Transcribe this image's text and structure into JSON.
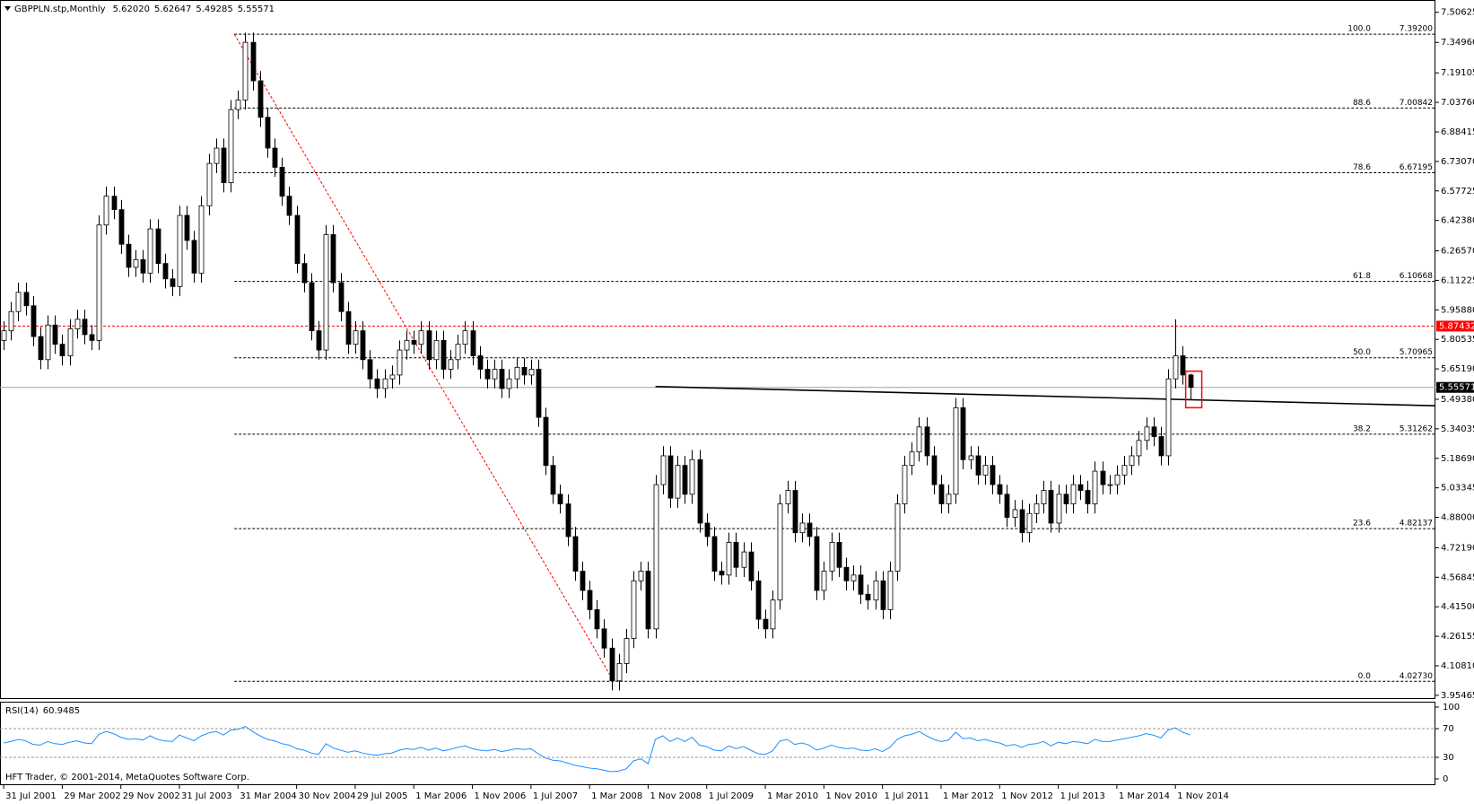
{
  "chart_data": {
    "type": "candlestick",
    "symbol": "GBPPLN.stp,Monthly",
    "ohlc_labels": [
      "5.62020",
      "5.62647",
      "5.49285",
      "5.55571"
    ],
    "up_color": "#ffffff",
    "down_color": "#000000",
    "xlim": [
      -0.5,
      195.5
    ],
    "xticks": [
      {
        "value": 0,
        "label": "31 Jul 2001"
      },
      {
        "value": 8,
        "label": "29 Mar 2002"
      },
      {
        "value": 16,
        "label": "29 Nov 2002"
      },
      {
        "value": 24,
        "label": "31 Jul 2003"
      },
      {
        "value": 32,
        "label": "31 Mar 2004"
      },
      {
        "value": 40,
        "label": "30 Nov 2004"
      },
      {
        "value": 48,
        "label": "29 Jul 2005"
      },
      {
        "value": 56,
        "label": "1 Mar 2006"
      },
      {
        "value": 64,
        "label": "1 Nov 2006"
      },
      {
        "value": 72,
        "label": "1 Jul 2007"
      },
      {
        "value": 80,
        "label": "1 Mar 2008"
      },
      {
        "value": 88,
        "label": "1 Nov 2008"
      },
      {
        "value": 96,
        "label": "1 Jul 2009"
      },
      {
        "value": 104,
        "label": "1 Mar 2010"
      },
      {
        "value": 112,
        "label": "1 Nov 2010"
      },
      {
        "value": 120,
        "label": "1 Jul 2011"
      },
      {
        "value": 128,
        "label": "1 Mar 2012"
      },
      {
        "value": 136,
        "label": "1 Nov 2012"
      },
      {
        "value": 144,
        "label": "1 Jul 2013"
      },
      {
        "value": 152,
        "label": "1 Mar 2014"
      },
      {
        "value": 160,
        "label": "1 Nov 2014"
      }
    ],
    "ylim": [
      3.94,
      7.57
    ],
    "yticks": [
      {
        "value": 7.50625,
        "label": "7.50625"
      },
      {
        "value": 7.3496,
        "label": "7.34960"
      },
      {
        "value": 7.19105,
        "label": "7.19105"
      },
      {
        "value": 7.0376,
        "label": "7.03760"
      },
      {
        "value": 6.88415,
        "label": "6.88415"
      },
      {
        "value": 6.7307,
        "label": "6.73070"
      },
      {
        "value": 6.57725,
        "label": "6.57725"
      },
      {
        "value": 6.4238,
        "label": "6.42380"
      },
      {
        "value": 6.2657,
        "label": "6.26570"
      },
      {
        "value": 6.11225,
        "label": "6.11225"
      },
      {
        "value": 5.9588,
        "label": "5.95880"
      },
      {
        "value": 5.80535,
        "label": "5.80535"
      },
      {
        "value": 5.6519,
        "label": "5.65190"
      },
      {
        "value": 5.4938,
        "label": "5.49380"
      },
      {
        "value": 5.34035,
        "label": "5.34035"
      },
      {
        "value": 5.1869,
        "label": "5.18690"
      },
      {
        "value": 5.03345,
        "label": "5.03345"
      },
      {
        "value": 4.88,
        "label": "4.88000"
      },
      {
        "value": 4.7219,
        "label": "4.72190"
      },
      {
        "value": 4.56845,
        "label": "4.56845"
      },
      {
        "value": 4.415,
        "label": "4.41500"
      },
      {
        "value": 4.26155,
        "label": "4.26155"
      },
      {
        "value": 4.1081,
        "label": "4.10810"
      },
      {
        "value": 3.95465,
        "label": "3.95465"
      }
    ],
    "candles": [
      [
        5.8,
        5.9,
        5.75,
        5.85
      ],
      [
        5.85,
        6.0,
        5.8,
        5.95
      ],
      [
        5.95,
        6.1,
        5.9,
        6.05
      ],
      [
        6.05,
        6.1,
        5.93,
        5.98
      ],
      [
        5.98,
        6.03,
        5.77,
        5.82
      ],
      [
        5.82,
        5.87,
        5.65,
        5.7
      ],
      [
        5.7,
        5.93,
        5.65,
        5.88
      ],
      [
        5.88,
        5.93,
        5.73,
        5.78
      ],
      [
        5.78,
        5.83,
        5.67,
        5.72
      ],
      [
        5.72,
        5.91,
        5.67,
        5.86
      ],
      [
        5.86,
        5.96,
        5.81,
        5.91
      ],
      [
        5.91,
        5.96,
        5.78,
        5.83
      ],
      [
        5.83,
        5.88,
        5.75,
        5.8
      ],
      [
        5.8,
        6.45,
        5.75,
        6.4
      ],
      [
        6.4,
        6.6,
        6.35,
        6.55
      ],
      [
        6.55,
        6.6,
        6.43,
        6.48
      ],
      [
        6.48,
        6.53,
        6.25,
        6.3
      ],
      [
        6.3,
        6.35,
        6.13,
        6.18
      ],
      [
        6.18,
        6.27,
        6.13,
        6.22
      ],
      [
        6.22,
        6.27,
        6.1,
        6.15
      ],
      [
        6.15,
        6.43,
        6.1,
        6.38
      ],
      [
        6.38,
        6.43,
        6.15,
        6.2
      ],
      [
        6.2,
        6.25,
        6.07,
        6.12
      ],
      [
        6.12,
        6.17,
        6.03,
        6.08
      ],
      [
        6.08,
        6.5,
        6.03,
        6.45
      ],
      [
        6.45,
        6.5,
        6.27,
        6.32
      ],
      [
        6.32,
        6.37,
        6.1,
        6.15
      ],
      [
        6.15,
        6.55,
        6.1,
        6.5
      ],
      [
        6.5,
        6.77,
        6.45,
        6.72
      ],
      [
        6.72,
        6.85,
        6.67,
        6.8
      ],
      [
        6.8,
        6.85,
        6.57,
        6.62
      ],
      [
        6.62,
        7.05,
        6.57,
        7.0
      ],
      [
        7.0,
        7.1,
        6.95,
        7.05
      ],
      [
        7.05,
        7.4,
        7.0,
        7.35
      ],
      [
        7.35,
        7.4,
        7.1,
        7.15
      ],
      [
        7.15,
        7.2,
        6.91,
        6.96
      ],
      [
        6.96,
        7.01,
        6.75,
        6.8
      ],
      [
        6.8,
        6.85,
        6.65,
        6.7
      ],
      [
        6.7,
        6.75,
        6.5,
        6.55
      ],
      [
        6.55,
        6.6,
        6.4,
        6.45
      ],
      [
        6.45,
        6.5,
        6.15,
        6.2
      ],
      [
        6.2,
        6.25,
        6.05,
        6.1
      ],
      [
        6.1,
        6.15,
        5.8,
        5.85
      ],
      [
        5.85,
        5.9,
        5.7,
        5.75
      ],
      [
        5.75,
        6.4,
        5.7,
        6.35
      ],
      [
        6.35,
        6.4,
        6.05,
        6.1
      ],
      [
        6.1,
        6.15,
        5.9,
        5.95
      ],
      [
        5.95,
        6.0,
        5.73,
        5.78
      ],
      [
        5.78,
        5.9,
        5.73,
        5.85
      ],
      [
        5.85,
        5.9,
        5.65,
        5.7
      ],
      [
        5.7,
        5.75,
        5.55,
        5.6
      ],
      [
        5.6,
        5.65,
        5.5,
        5.55
      ],
      [
        5.55,
        5.65,
        5.5,
        5.6
      ],
      [
        5.6,
        5.67,
        5.55,
        5.62
      ],
      [
        5.62,
        5.8,
        5.57,
        5.75
      ],
      [
        5.75,
        5.85,
        5.7,
        5.8
      ],
      [
        5.8,
        5.85,
        5.73,
        5.78
      ],
      [
        5.78,
        5.9,
        5.73,
        5.85
      ],
      [
        5.85,
        5.9,
        5.65,
        5.7
      ],
      [
        5.7,
        5.85,
        5.65,
        5.8
      ],
      [
        5.8,
        5.85,
        5.6,
        5.65
      ],
      [
        5.65,
        5.75,
        5.6,
        5.7
      ],
      [
        5.7,
        5.83,
        5.65,
        5.78
      ],
      [
        5.78,
        5.9,
        5.73,
        5.85
      ],
      [
        5.85,
        5.9,
        5.67,
        5.72
      ],
      [
        5.72,
        5.77,
        5.6,
        5.65
      ],
      [
        5.65,
        5.7,
        5.55,
        5.6
      ],
      [
        5.6,
        5.7,
        5.55,
        5.65
      ],
      [
        5.65,
        5.7,
        5.5,
        5.55
      ],
      [
        5.55,
        5.65,
        5.5,
        5.6
      ],
      [
        5.6,
        5.71,
        5.55,
        5.66
      ],
      [
        5.66,
        5.71,
        5.57,
        5.62
      ],
      [
        5.62,
        5.7,
        5.57,
        5.65
      ],
      [
        5.65,
        5.7,
        5.35,
        5.4
      ],
      [
        5.4,
        5.45,
        5.1,
        5.15
      ],
      [
        5.15,
        5.2,
        4.95,
        5.0
      ],
      [
        5.0,
        5.05,
        4.9,
        4.95
      ],
      [
        4.95,
        5.0,
        4.73,
        4.78
      ],
      [
        4.78,
        4.83,
        4.55,
        4.6
      ],
      [
        4.6,
        4.65,
        4.45,
        4.5
      ],
      [
        4.5,
        4.55,
        4.35,
        4.4
      ],
      [
        4.4,
        4.45,
        4.25,
        4.3
      ],
      [
        4.3,
        4.35,
        4.15,
        4.2
      ],
      [
        4.2,
        4.25,
        3.98,
        4.03
      ],
      [
        4.03,
        4.17,
        3.98,
        4.12
      ],
      [
        4.12,
        4.3,
        4.07,
        4.25
      ],
      [
        4.25,
        4.6,
        4.2,
        4.55
      ],
      [
        4.55,
        4.65,
        4.5,
        4.6
      ],
      [
        4.6,
        4.65,
        4.25,
        4.3
      ],
      [
        4.3,
        5.1,
        4.25,
        5.05
      ],
      [
        5.05,
        5.25,
        5.0,
        5.2
      ],
      [
        5.2,
        5.25,
        4.93,
        4.98
      ],
      [
        4.98,
        5.2,
        4.93,
        5.15
      ],
      [
        5.15,
        5.2,
        4.95,
        5.0
      ],
      [
        5.0,
        5.23,
        4.95,
        5.18
      ],
      [
        5.18,
        5.23,
        4.8,
        4.85
      ],
      [
        4.85,
        4.9,
        4.73,
        4.78
      ],
      [
        4.78,
        4.83,
        4.55,
        4.6
      ],
      [
        4.6,
        4.65,
        4.53,
        4.58
      ],
      [
        4.58,
        4.8,
        4.53,
        4.75
      ],
      [
        4.75,
        4.8,
        4.57,
        4.62
      ],
      [
        4.62,
        4.75,
        4.57,
        4.7
      ],
      [
        4.7,
        4.75,
        4.5,
        4.55
      ],
      [
        4.55,
        4.6,
        4.3,
        4.35
      ],
      [
        4.35,
        4.4,
        4.25,
        4.3
      ],
      [
        4.3,
        4.5,
        4.25,
        4.45
      ],
      [
        4.45,
        5.0,
        4.4,
        4.95
      ],
      [
        4.95,
        5.07,
        4.9,
        5.02
      ],
      [
        5.02,
        5.07,
        4.75,
        4.8
      ],
      [
        4.8,
        4.9,
        4.75,
        4.85
      ],
      [
        4.85,
        4.9,
        4.73,
        4.78
      ],
      [
        4.78,
        4.83,
        4.45,
        4.5
      ],
      [
        4.5,
        4.65,
        4.45,
        4.6
      ],
      [
        4.6,
        4.8,
        4.55,
        4.75
      ],
      [
        4.75,
        4.8,
        4.57,
        4.62
      ],
      [
        4.62,
        4.67,
        4.5,
        4.55
      ],
      [
        4.55,
        4.63,
        4.5,
        4.58
      ],
      [
        4.58,
        4.63,
        4.43,
        4.48
      ],
      [
        4.48,
        4.53,
        4.4,
        4.45
      ],
      [
        4.45,
        4.6,
        4.4,
        4.55
      ],
      [
        4.55,
        4.6,
        4.35,
        4.4
      ],
      [
        4.4,
        4.65,
        4.35,
        4.6
      ],
      [
        4.6,
        5.0,
        4.55,
        4.95
      ],
      [
        4.95,
        5.2,
        4.9,
        5.15
      ],
      [
        5.15,
        5.27,
        5.1,
        5.22
      ],
      [
        5.22,
        5.4,
        5.17,
        5.35
      ],
      [
        5.35,
        5.4,
        5.15,
        5.2
      ],
      [
        5.2,
        5.25,
        5.0,
        5.05
      ],
      [
        5.05,
        5.1,
        4.9,
        4.95
      ],
      [
        4.95,
        5.05,
        4.9,
        5.0
      ],
      [
        5.0,
        5.5,
        4.95,
        5.45
      ],
      [
        5.45,
        5.5,
        5.13,
        5.18
      ],
      [
        5.18,
        5.25,
        5.13,
        5.2
      ],
      [
        5.2,
        5.25,
        5.05,
        5.1
      ],
      [
        5.1,
        5.2,
        5.05,
        5.15
      ],
      [
        5.15,
        5.2,
        5.0,
        5.05
      ],
      [
        5.05,
        5.1,
        4.95,
        5.0
      ],
      [
        5.0,
        5.05,
        4.83,
        4.88
      ],
      [
        4.88,
        4.97,
        4.83,
        4.92
      ],
      [
        4.92,
        4.97,
        4.75,
        4.8
      ],
      [
        4.8,
        4.95,
        4.75,
        4.9
      ],
      [
        4.9,
        5.0,
        4.85,
        4.95
      ],
      [
        4.95,
        5.07,
        4.9,
        5.02
      ],
      [
        5.02,
        5.07,
        4.8,
        4.85
      ],
      [
        4.85,
        5.05,
        4.8,
        5.0
      ],
      [
        5.0,
        5.05,
        4.9,
        4.95
      ],
      [
        4.95,
        5.1,
        4.9,
        5.05
      ],
      [
        5.05,
        5.1,
        4.97,
        5.02
      ],
      [
        5.02,
        5.07,
        4.9,
        4.95
      ],
      [
        4.95,
        5.17,
        4.9,
        5.12
      ],
      [
        5.12,
        5.17,
        5.0,
        5.05
      ],
      [
        5.05,
        5.1,
        5.0,
        5.05
      ],
      [
        5.05,
        5.15,
        5.0,
        5.1
      ],
      [
        5.1,
        5.2,
        5.05,
        5.15
      ],
      [
        5.15,
        5.25,
        5.1,
        5.2
      ],
      [
        5.2,
        5.33,
        5.15,
        5.28
      ],
      [
        5.28,
        5.4,
        5.23,
        5.35
      ],
      [
        5.35,
        5.4,
        5.25,
        5.3
      ],
      [
        5.3,
        5.35,
        5.15,
        5.2
      ],
      [
        5.2,
        5.65,
        5.15,
        5.6
      ],
      [
        5.6,
        5.91,
        5.55,
        5.72
      ],
      [
        5.72,
        5.77,
        5.57,
        5.6202
      ],
      [
        5.6202,
        5.62647,
        5.49285,
        5.55571
      ]
    ],
    "fib_x": [
      31.5,
      83.3
    ],
    "fib_levels": [
      {
        "level": {
          "value": 100,
          "label": "100.0"
        },
        "price": {
          "value": 7.392,
          "label": "7.39200"
        }
      },
      {
        "level": 88.6,
        "price": 7.00842
      },
      {
        "level": 78.6,
        "price": 6.67195
      },
      {
        "level": 61.8,
        "price": 6.10668
      },
      {
        "level": {
          "value": 50,
          "label": "50.0"
        },
        "price": 5.70965
      },
      {
        "level": 38.2,
        "price": 5.31262
      },
      {
        "level": 23.6,
        "price": 4.82137
      },
      {
        "level": {
          "value": 0,
          "label": "0.0"
        },
        "price": {
          "value": 4.0273,
          "label": "4.02730"
        }
      }
    ],
    "fib_color": "#000000",
    "diagonal_color": "#ff0000",
    "red_line": {
      "value": 5.87432,
      "color": "#ff0000"
    },
    "trendline": {
      "x": [
        89,
        195.5
      ],
      "y": [
        5.56,
        5.46
      ]
    },
    "highlight": {
      "x": [
        161.4,
        163.6
      ],
      "y": [
        5.45,
        5.64
      ],
      "color": "#ff0000"
    },
    "rsi": {
      "title": "RSI(14)",
      "color": "#1e90ff",
      "ylim": [
        0,
        100
      ],
      "yticks": [
        100,
        70,
        30,
        0
      ],
      "values": [
        50,
        52,
        55,
        53,
        48,
        47,
        52,
        49,
        48,
        51,
        53,
        50,
        49,
        62,
        66,
        63,
        58,
        55,
        56,
        54,
        60,
        55,
        53,
        52,
        61,
        57,
        53,
        60,
        64,
        66,
        61,
        68,
        69,
        73,
        66,
        60,
        55,
        53,
        49,
        47,
        42,
        40,
        36,
        34,
        49,
        43,
        40,
        37,
        39,
        36,
        34,
        33,
        35,
        36,
        40,
        42,
        41,
        44,
        40,
        43,
        39,
        41,
        44,
        46,
        42,
        40,
        39,
        41,
        38,
        40,
        42,
        41,
        42,
        35,
        29,
        26,
        25,
        22,
        19,
        17,
        15,
        14,
        12,
        10,
        11,
        14,
        25,
        28,
        21,
        55,
        60,
        52,
        57,
        52,
        58,
        47,
        45,
        40,
        39,
        46,
        42,
        45,
        40,
        35,
        34,
        39,
        53,
        55,
        48,
        50,
        47,
        40,
        43,
        47,
        44,
        42,
        43,
        40,
        39,
        42,
        38,
        44,
        55,
        60,
        62,
        66,
        60,
        55,
        52,
        54,
        65,
        56,
        57,
        53,
        55,
        52,
        50,
        46,
        48,
        44,
        48,
        49,
        52,
        46,
        51,
        49,
        52,
        51,
        49,
        55,
        52,
        52,
        54,
        56,
        58,
        60,
        63,
        61,
        57,
        68,
        71,
        65,
        60.9485
      ]
    },
    "copyright": "HFT Trader, © 2001-2014, MetaQuotes Software Corp."
  }
}
